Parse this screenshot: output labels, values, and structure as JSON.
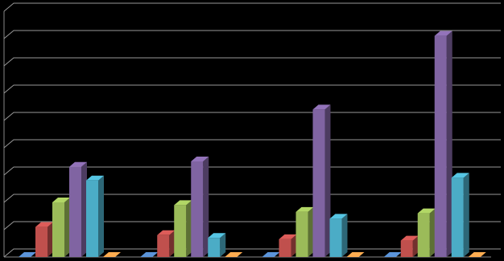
{
  "chart_data": {
    "type": "bar3d",
    "categories": [
      null,
      null,
      null,
      null
    ],
    "series": [
      {
        "color": "#4f81bd",
        "values": [
          0,
          0,
          0,
          0
        ]
      },
      {
        "color": "#c0504d",
        "values": [
          1.1,
          0.8,
          0.65,
          0.6
        ]
      },
      {
        "color": "#9bbb59",
        "values": [
          2.0,
          1.9,
          1.65,
          1.6
        ]
      },
      {
        "color": "#8064a2",
        "values": [
          3.3,
          3.5,
          5.4,
          8.1
        ]
      },
      {
        "color": "#4bacc6",
        "values": [
          2.8,
          0.7,
          1.4,
          2.9
        ]
      },
      {
        "color": "#f79646",
        "values": [
          0,
          0,
          0,
          0
        ]
      }
    ],
    "ylim": [
      0,
      9
    ],
    "yticks": [
      0,
      1,
      2,
      3,
      4,
      5,
      6,
      7,
      8,
      9
    ],
    "grid": true
  }
}
